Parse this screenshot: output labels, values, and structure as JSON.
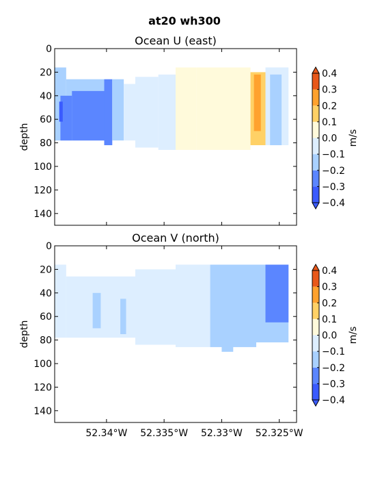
{
  "suptitle": "at20 wh300",
  "chart_data": [
    {
      "type": "heatmap",
      "title": "Ocean U (east)",
      "ylabel": "depth",
      "xlabel": "",
      "xlim": [
        -52.3445,
        -52.3235
      ],
      "ylim": [
        150,
        0
      ],
      "y_ticks": [
        "0",
        "20",
        "40",
        "60",
        "80",
        "100",
        "120",
        "140"
      ],
      "x_ticks": [],
      "colorbar": {
        "label": "m/s",
        "ticks": [
          "0.4",
          "0.3",
          "0.2",
          "0.1",
          "0.0",
          "−0.1",
          "−0.2",
          "−0.3",
          "−0.4"
        ],
        "levels": [
          -0.4,
          -0.3,
          -0.2,
          -0.1,
          0.0,
          0.1,
          0.2,
          0.3,
          0.4
        ]
      },
      "regions": [
        {
          "x": [
            -52.3445,
            -52.3435
          ],
          "y": [
            16,
            78
          ],
          "value": -0.15
        },
        {
          "x": [
            -52.3435,
            -52.3402
          ],
          "y": [
            26,
            78
          ],
          "value": -0.15
        },
        {
          "x": [
            -52.344,
            -52.343
          ],
          "y": [
            40,
            78
          ],
          "value": -0.25
        },
        {
          "x": [
            -52.343,
            -52.34
          ],
          "y": [
            36,
            78
          ],
          "value": -0.25
        },
        {
          "x": [
            -52.3441,
            -52.3438
          ],
          "y": [
            45,
            62
          ],
          "value": -0.35
        },
        {
          "x": [
            -52.3402,
            -52.3395
          ],
          "y": [
            26,
            82
          ],
          "value": -0.25
        },
        {
          "x": [
            -52.3395,
            -52.3385
          ],
          "y": [
            26,
            78
          ],
          "value": -0.15
        },
        {
          "x": [
            -52.3385,
            -52.3375
          ],
          "y": [
            30,
            78
          ],
          "value": -0.05
        },
        {
          "x": [
            -52.3375,
            -52.3355
          ],
          "y": [
            24,
            84
          ],
          "value": -0.05
        },
        {
          "x": [
            -52.3355,
            -52.334
          ],
          "y": [
            22,
            86
          ],
          "value": -0.05
        },
        {
          "x": [
            -52.334,
            -52.3322
          ],
          "y": [
            16,
            86
          ],
          "value": 0.05
        },
        {
          "x": [
            -52.3322,
            -52.3275
          ],
          "y": [
            16,
            86
          ],
          "value": 0.05
        },
        {
          "x": [
            -52.3275,
            -52.3262
          ],
          "y": [
            20,
            82
          ],
          "value": 0.15
        },
        {
          "x": [
            -52.3272,
            -52.3266
          ],
          "y": [
            22,
            70
          ],
          "value": 0.25
        },
        {
          "x": [
            -52.3262,
            -52.3242
          ],
          "y": [
            16,
            82
          ],
          "value": -0.05
        },
        {
          "x": [
            -52.3258,
            -52.3248
          ],
          "y": [
            22,
            82
          ],
          "value": -0.15
        }
      ]
    },
    {
      "type": "heatmap",
      "title": "Ocean V (north)",
      "ylabel": "depth",
      "xlabel": "",
      "xlim": [
        -52.3445,
        -52.3235
      ],
      "ylim": [
        150,
        0
      ],
      "y_ticks": [
        "0",
        "20",
        "40",
        "60",
        "80",
        "100",
        "120",
        "140"
      ],
      "x_ticks": [
        {
          "value": -52.34,
          "label": "52.34°W"
        },
        {
          "value": -52.335,
          "label": "52.335°W"
        },
        {
          "value": -52.33,
          "label": "52.33°W"
        },
        {
          "value": -52.325,
          "label": "52.325°W"
        }
      ],
      "colorbar": {
        "label": "m/s",
        "ticks": [
          "0.4",
          "0.3",
          "0.2",
          "0.1",
          "0.0",
          "−0.1",
          "−0.2",
          "−0.3",
          "−0.4"
        ],
        "levels": [
          -0.4,
          -0.3,
          -0.2,
          -0.1,
          0.0,
          0.1,
          0.2,
          0.3,
          0.4
        ]
      },
      "regions": [
        {
          "x": [
            -52.3445,
            -52.3435
          ],
          "y": [
            16,
            78
          ],
          "value": -0.05
        },
        {
          "x": [
            -52.3435,
            -52.3375
          ],
          "y": [
            26,
            78
          ],
          "value": -0.05
        },
        {
          "x": [
            -52.3375,
            -52.334
          ],
          "y": [
            20,
            84
          ],
          "value": -0.05
        },
        {
          "x": [
            -52.334,
            -52.331
          ],
          "y": [
            16,
            86
          ],
          "value": -0.05
        },
        {
          "x": [
            -52.331,
            -52.327
          ],
          "y": [
            16,
            86
          ],
          "value": -0.15
        },
        {
          "x": [
            -52.33,
            -52.329
          ],
          "y": [
            20,
            90
          ],
          "value": -0.15
        },
        {
          "x": [
            -52.327,
            -52.3242
          ],
          "y": [
            16,
            82
          ],
          "value": -0.15
        },
        {
          "x": [
            -52.3262,
            -52.3242
          ],
          "y": [
            16,
            65
          ],
          "value": -0.25
        },
        {
          "x": [
            -52.3412,
            -52.3405
          ],
          "y": [
            40,
            70
          ],
          "value": -0.15
        },
        {
          "x": [
            -52.3388,
            -52.3383
          ],
          "y": [
            45,
            75
          ],
          "value": -0.15
        }
      ]
    }
  ]
}
